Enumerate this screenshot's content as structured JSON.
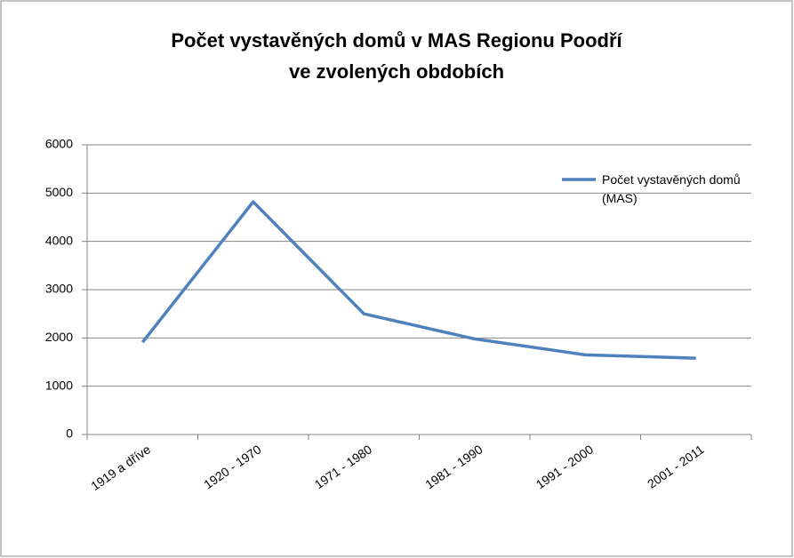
{
  "chart_data": {
    "type": "line",
    "title": [
      "Počet vystavěných domů v MAS Regionu Poodří",
      "ve zvolených obdobích"
    ],
    "categories": [
      "1919 a dříve",
      "1920 - 1970",
      "1971 - 1980",
      "1981 - 1990",
      "1991 - 2000",
      "2001 - 2011"
    ],
    "series": [
      {
        "name": "Počet vystavěných domů (MAS)",
        "color": "#4f81bd",
        "values": [
          1910,
          4820,
          2500,
          1980,
          1650,
          1580
        ]
      }
    ],
    "ylim": [
      0,
      6000
    ],
    "yticks": [
      0,
      1000,
      2000,
      3000,
      4000,
      5000,
      6000
    ],
    "grid": true,
    "legend": "right"
  }
}
